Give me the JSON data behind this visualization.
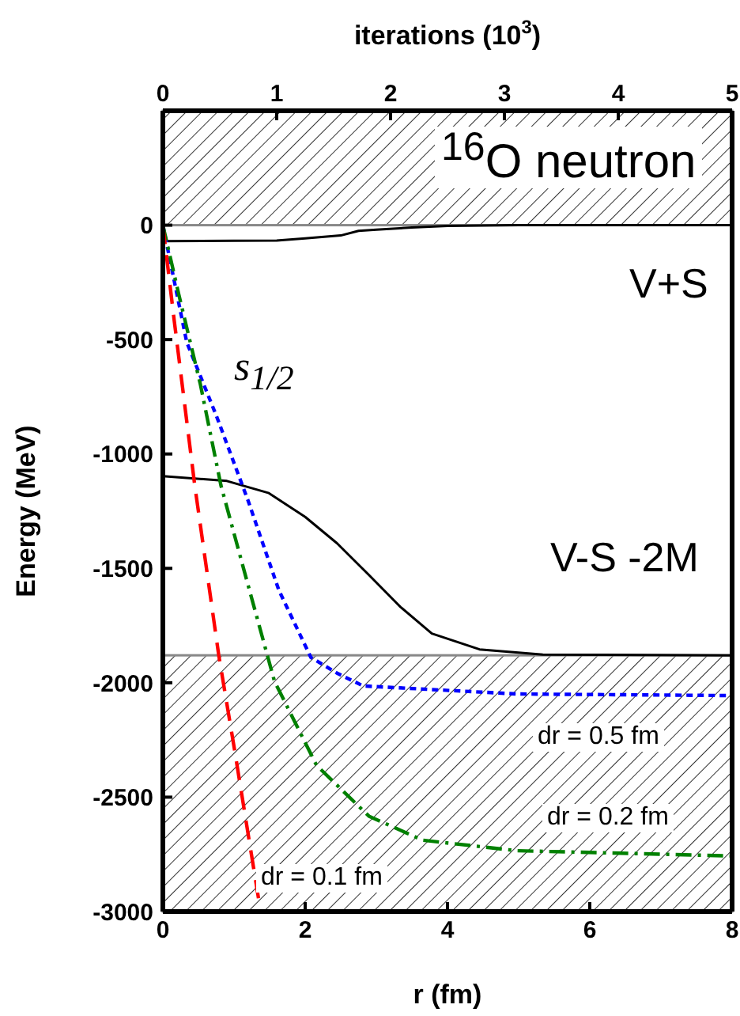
{
  "chart_data": {
    "type": "line",
    "xlabel": "r (fm)",
    "ylabel": "Energy (MeV)",
    "x2label": "iterations (10$^{3}$)",
    "xlim": [
      0,
      8
    ],
    "xticks": [
      0,
      2,
      4,
      6,
      8
    ],
    "x2lim": [
      0,
      5
    ],
    "x2ticks": [
      0,
      1,
      2,
      3,
      4,
      5
    ],
    "ylim": [
      -3000,
      500
    ],
    "yticks": [
      -3000,
      -2500,
      -2000,
      -1500,
      -1000,
      -500,
      0
    ],
    "marker": "none",
    "bands": [
      {
        "axis": "y",
        "from": 0,
        "to": 500
      },
      {
        "axis": "y",
        "from": -3000,
        "to": -1880
      }
    ],
    "annotations": [
      "$^{16}$O neutron",
      "s$_{1/2}$"
    ],
    "series": [
      {
        "name": "V+S",
        "color": "#000000",
        "line_style": "solid",
        "x": [
          0,
          1,
          1.6,
          2,
          2.5,
          2.75,
          3,
          3.5,
          4,
          5,
          8
        ],
        "values": [
          -70,
          -68,
          -67,
          -58,
          -45,
          -25,
          -20,
          -10,
          -3,
          0,
          0
        ]
      },
      {
        "name": "V-S -2M",
        "color": "#000000",
        "line_style": "solid",
        "x": [
          0,
          0.9,
          1.49,
          2.0,
          2.45,
          2.9,
          3.34,
          3.78,
          4.45,
          5.34,
          8
        ],
        "values": [
          -1097,
          -1118,
          -1171,
          -1275,
          -1391,
          -1530,
          -1669,
          -1785,
          -1854,
          -1877,
          -1880
        ]
      },
      {
        "name": "dr = 0.5 fm",
        "color": "#0000ff",
        "line_style": "dotted",
        "axis": "x2",
        "x": [
          0,
          0.21,
          0.47,
          0.75,
          1.02,
          1.3,
          1.53,
          1.76,
          3.11,
          5
        ],
        "values": [
          0,
          -512,
          -833,
          -1206,
          -1597,
          -1889,
          -1958,
          -2014,
          -2049,
          -2056
        ]
      },
      {
        "name": "dr = 0.2 fm",
        "color": "#008000",
        "line_style": "dashdot",
        "axis": "x2",
        "x": [
          0,
          0.14,
          0.33,
          0.51,
          0.75,
          0.98,
          1.35,
          1.81,
          2.28,
          3.11,
          5
        ],
        "values": [
          0,
          -303,
          -697,
          -1137,
          -1576,
          -1993,
          -2361,
          -2583,
          -2688,
          -2734,
          -2757
        ]
      },
      {
        "name": "dr = 0.1 fm",
        "color": "#ff0000",
        "line_style": "dashed",
        "axis": "x2",
        "x": [
          0,
          0.1,
          0.28,
          0.49,
          0.63,
          0.84
        ],
        "values": [
          0,
          -418,
          -1137,
          -1877,
          -2294,
          -2942
        ]
      }
    ]
  }
}
